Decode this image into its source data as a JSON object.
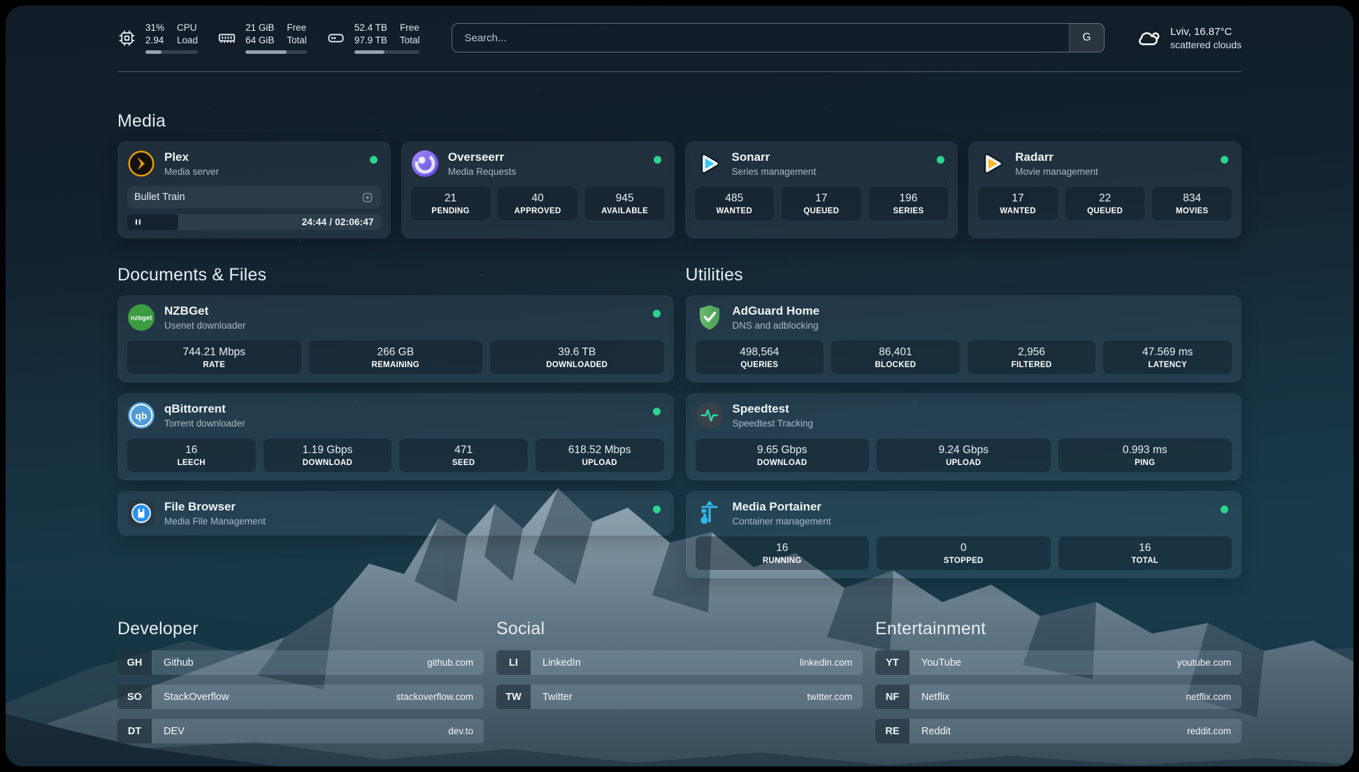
{
  "colors": {
    "status_online": "#2bd48f",
    "accent_plex": "#e5a00d",
    "accent_overseerr": "#7c5ce6",
    "accent_sonarr": "#35c5f4",
    "accent_radarr": "#fdb924",
    "accent_nzbget": "#3d9c40",
    "accent_qbittorrent": "#4f9bd9",
    "accent_filebrowser": "#2a8ff0",
    "accent_adguard": "#5cb264",
    "accent_speedtest": "#2fd8a3",
    "accent_portainer": "#33b5e5"
  },
  "header": {
    "cpu": {
      "icon": "cpu-icon",
      "values": [
        "31%",
        "2.94"
      ],
      "labels": [
        "CPU",
        "Load"
      ],
      "bar_percent": 31
    },
    "memory": {
      "icon": "ram-icon",
      "values": [
        "21 GiB",
        "64 GiB"
      ],
      "labels": [
        "Free",
        "Total"
      ],
      "bar_percent": 67
    },
    "disk": {
      "icon": "hard-drive-icon",
      "values": [
        "52.4 TB",
        "97.9 TB"
      ],
      "labels": [
        "Free",
        "Total"
      ],
      "bar_percent": 46
    },
    "search": {
      "placeholder": "Search...",
      "engine_button": "G"
    },
    "weather": {
      "icon": "cloud-icon",
      "location_temp": "Lviv, 16.87°C",
      "condition": "scattered clouds"
    }
  },
  "sections": {
    "media": {
      "title": "Media",
      "cards": [
        {
          "name": "Plex",
          "subtitle": "Media server",
          "icon": "plex-icon",
          "online": true,
          "now_playing": {
            "title": "Bullet Train",
            "time": "24:44 / 02:06:47",
            "progress_percent": 20
          }
        },
        {
          "name": "Overseerr",
          "subtitle": "Media Requests",
          "icon": "overseerr-icon",
          "online": true,
          "stats": [
            {
              "value": "21",
              "label": "PENDING"
            },
            {
              "value": "40",
              "label": "APPROVED"
            },
            {
              "value": "945",
              "label": "AVAILABLE"
            }
          ]
        },
        {
          "name": "Sonarr",
          "subtitle": "Series management",
          "icon": "sonarr-icon",
          "online": true,
          "stats": [
            {
              "value": "485",
              "label": "WANTED"
            },
            {
              "value": "17",
              "label": "QUEUED"
            },
            {
              "value": "196",
              "label": "SERIES"
            }
          ]
        },
        {
          "name": "Radarr",
          "subtitle": "Movie management",
          "icon": "radarr-icon",
          "online": true,
          "stats": [
            {
              "value": "17",
              "label": "WANTED"
            },
            {
              "value": "22",
              "label": "QUEUED"
            },
            {
              "value": "834",
              "label": "MOVIES"
            }
          ]
        }
      ]
    },
    "documents": {
      "title": "Documents & Files",
      "cards": [
        {
          "name": "NZBGet",
          "subtitle": "Usenet downloader",
          "icon": "nzbget-icon",
          "online": true,
          "stats": [
            {
              "value": "744.21 Mbps",
              "label": "RATE"
            },
            {
              "value": "266 GB",
              "label": "REMAINING"
            },
            {
              "value": "39.6 TB",
              "label": "DOWNLOADED"
            }
          ]
        },
        {
          "name": "qBittorrent",
          "subtitle": "Torrent downloader",
          "icon": "qbittorrent-icon",
          "online": true,
          "stats": [
            {
              "value": "16",
              "label": "LEECH"
            },
            {
              "value": "1.19 Gbps",
              "label": "DOWNLOAD"
            },
            {
              "value": "471",
              "label": "SEED"
            },
            {
              "value": "618.52 Mbps",
              "label": "UPLOAD"
            }
          ]
        },
        {
          "name": "File Browser",
          "subtitle": "Media File Management",
          "icon": "filebrowser-icon",
          "online": true,
          "stats": []
        }
      ]
    },
    "utilities": {
      "title": "Utilities",
      "cards": [
        {
          "name": "AdGuard Home",
          "subtitle": "DNS and adblocking",
          "icon": "adguard-icon",
          "online": false,
          "stats": [
            {
              "value": "498,564",
              "label": "QUERIES"
            },
            {
              "value": "86,401",
              "label": "BLOCKED"
            },
            {
              "value": "2,956",
              "label": "FILTERED"
            },
            {
              "value": "47.569 ms",
              "label": "LATENCY"
            }
          ]
        },
        {
          "name": "Speedtest",
          "subtitle": "Speedtest Tracking",
          "icon": "speedtest-icon",
          "online": false,
          "stats": [
            {
              "value": "9.65 Gbps",
              "label": "DOWNLOAD"
            },
            {
              "value": "9.24 Gbps",
              "label": "UPLOAD"
            },
            {
              "value": "0.993 ms",
              "label": "PING"
            }
          ]
        },
        {
          "name": "Media Portainer",
          "subtitle": "Container management",
          "icon": "portainer-icon",
          "online": true,
          "stats": [
            {
              "value": "16",
              "label": "RUNNING"
            },
            {
              "value": "0",
              "label": "STOPPED"
            },
            {
              "value": "16",
              "label": "TOTAL"
            }
          ]
        }
      ]
    },
    "bookmarks": [
      {
        "title": "Developer",
        "items": [
          {
            "abbr": "GH",
            "name": "Github",
            "url": "github.com"
          },
          {
            "abbr": "SO",
            "name": "StackOverflow",
            "url": "stackoverflow.com"
          },
          {
            "abbr": "DT",
            "name": "DEV",
            "url": "dev.to"
          }
        ]
      },
      {
        "title": "Social",
        "items": [
          {
            "abbr": "LI",
            "name": "LinkedIn",
            "url": "linkedin.com"
          },
          {
            "abbr": "TW",
            "name": "Twitter",
            "url": "twitter.com"
          }
        ]
      },
      {
        "title": "Entertainment",
        "items": [
          {
            "abbr": "YT",
            "name": "YouTube",
            "url": "youtube.com"
          },
          {
            "abbr": "NF",
            "name": "Netflix",
            "url": "netflix.com"
          },
          {
            "abbr": "RE",
            "name": "Reddit",
            "url": "reddit.com"
          }
        ]
      }
    ]
  }
}
